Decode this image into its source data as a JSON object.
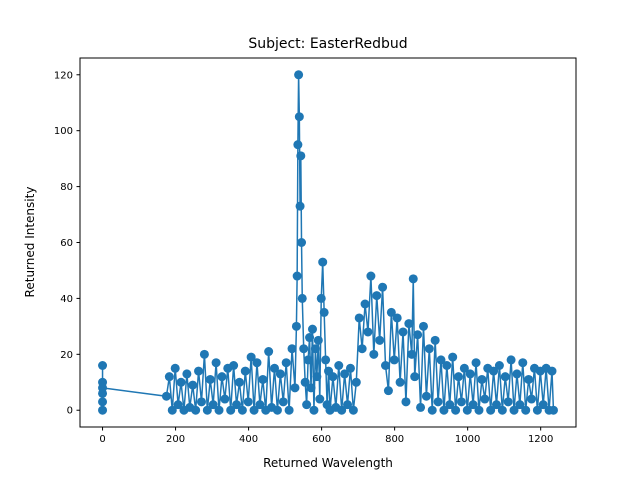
{
  "chart_data": {
    "type": "line",
    "title": "Subject: EasterRedbud",
    "x_label": "Returned Wavelength",
    "y_label": "Returned Intensity",
    "color": "#1f77b4",
    "markers": true,
    "x": [
      0,
      0,
      0,
      0,
      0,
      0,
      175,
      183,
      191,
      199,
      207,
      215,
      223,
      231,
      239,
      247,
      255,
      263,
      271,
      279,
      287,
      295,
      303,
      311,
      319,
      327,
      335,
      343,
      351,
      359,
      367,
      375,
      383,
      391,
      399,
      407,
      415,
      423,
      431,
      439,
      447,
      455,
      463,
      471,
      479,
      487,
      495,
      503,
      511,
      519,
      527,
      531,
      533,
      535,
      537,
      539,
      541,
      543,
      545,
      547,
      551,
      555,
      559,
      563,
      567,
      571,
      575,
      579,
      583,
      587,
      591,
      595,
      599,
      603,
      607,
      611,
      615,
      619,
      623,
      631,
      639,
      647,
      655,
      663,
      671,
      679,
      687,
      695,
      703,
      711,
      719,
      727,
      735,
      743,
      751,
      759,
      767,
      775,
      783,
      791,
      799,
      807,
      815,
      823,
      831,
      839,
      847,
      851,
      855,
      863,
      871,
      879,
      887,
      895,
      903,
      911,
      919,
      927,
      935,
      943,
      951,
      959,
      967,
      975,
      983,
      991,
      999,
      1007,
      1015,
      1023,
      1031,
      1039,
      1047,
      1055,
      1063,
      1071,
      1079,
      1087,
      1095,
      1103,
      1111,
      1119,
      1127,
      1135,
      1143,
      1151,
      1159,
      1167,
      1175,
      1183,
      1191,
      1199,
      1207,
      1215,
      1223,
      1231,
      1235
    ],
    "values": [
      16,
      10,
      6,
      3,
      0,
      8,
      5,
      12,
      0,
      15,
      2,
      10,
      0,
      13,
      1,
      9,
      0,
      14,
      3,
      20,
      0,
      11,
      2,
      17,
      0,
      12,
      4,
      15,
      0,
      16,
      2,
      10,
      0,
      14,
      3,
      19,
      0,
      17,
      2,
      11,
      0,
      21,
      1,
      15,
      0,
      13,
      3,
      17,
      0,
      22,
      8,
      30,
      48,
      95,
      120,
      105,
      73,
      91,
      60,
      40,
      22,
      10,
      2,
      18,
      26,
      8,
      29,
      0,
      22,
      12,
      25,
      4,
      40,
      53,
      35,
      18,
      2,
      14,
      0,
      12,
      1,
      16,
      0,
      13,
      2,
      15,
      0,
      10,
      33,
      22,
      38,
      28,
      48,
      20,
      41,
      25,
      44,
      16,
      7,
      35,
      18,
      33,
      10,
      28,
      3,
      31,
      20,
      47,
      12,
      27,
      1,
      30,
      5,
      22,
      0,
      25,
      3,
      18,
      0,
      16,
      2,
      19,
      0,
      12,
      3,
      15,
      0,
      13,
      2,
      17,
      0,
      11,
      4,
      15,
      0,
      14,
      2,
      16,
      0,
      12,
      3,
      18,
      0,
      13,
      2,
      17,
      0,
      11,
      4,
      15,
      0,
      14,
      2,
      15,
      0,
      14,
      0
    ],
    "xlim": [
      -61.75,
      1296.75
    ],
    "ylim": [
      -6,
      126
    ],
    "xticks": [
      0,
      200,
      400,
      600,
      800,
      1000,
      1200
    ],
    "yticks": [
      0,
      20,
      40,
      60,
      80,
      100,
      120
    ]
  }
}
